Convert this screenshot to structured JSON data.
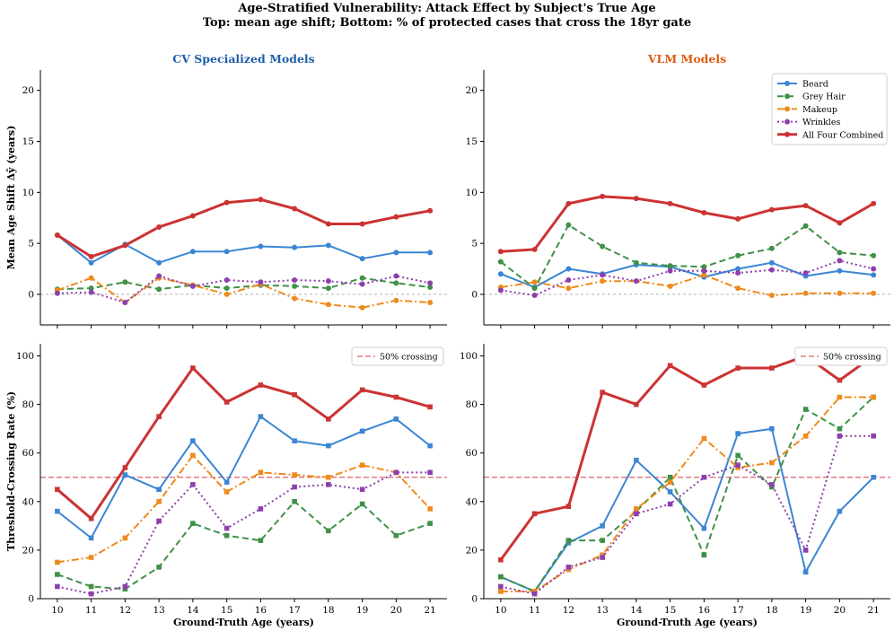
{
  "title_line1": "Age-Stratified Vulnerability: Attack Effect by Subject's True Age",
  "title_line2": "Top: mean age shift; Bottom: % of protected cases that cross the 18yr gate",
  "colors": {
    "Beard": "#3a86d4",
    "Grey Hair": "#3f9147",
    "Makeup": "#ef8a1d",
    "Wrinkles": "#8e3fad",
    "All Four Combined": "#cc3333",
    "cv_title": "#1f5fa8",
    "vlm_title": "#e05a12",
    "crossing": "#d9626a",
    "zero": "#b3b3b3"
  },
  "chart_data": [
    {
      "type": "line",
      "panel": "top-left",
      "title": "CV Specialized Models",
      "ylabel": "Mean Age Shift Δŷ (years)",
      "xlabel": "",
      "ylim": [
        -3,
        22
      ],
      "yticks": [
        0,
        5,
        10,
        15,
        20
      ],
      "x": [
        10,
        11,
        12,
        13,
        14,
        15,
        16,
        17,
        18,
        19,
        20,
        21
      ],
      "series": [
        {
          "name": "Beard",
          "values": [
            5.8,
            3.1,
            4.9,
            3.1,
            4.2,
            4.2,
            4.7,
            4.6,
            4.8,
            3.5,
            4.1,
            4.1
          ]
        },
        {
          "name": "Grey Hair",
          "values": [
            0.5,
            0.6,
            1.2,
            0.5,
            0.9,
            0.6,
            0.9,
            0.8,
            0.6,
            1.6,
            1.1,
            0.7
          ]
        },
        {
          "name": "Makeup",
          "values": [
            0.4,
            1.6,
            -0.8,
            1.6,
            0.9,
            0.0,
            1.0,
            -0.4,
            -1.0,
            -1.3,
            -0.6,
            -0.8
          ]
        },
        {
          "name": "Wrinkles",
          "values": [
            0.1,
            0.2,
            -0.8,
            1.8,
            0.8,
            1.4,
            1.2,
            1.4,
            1.3,
            1.0,
            1.8,
            1.1
          ]
        },
        {
          "name": "All Four Combined",
          "values": [
            5.8,
            3.7,
            4.8,
            6.6,
            7.7,
            9.0,
            9.3,
            8.4,
            6.9,
            6.9,
            7.6,
            8.2
          ]
        }
      ]
    },
    {
      "type": "line",
      "panel": "top-right",
      "title": "VLM Models",
      "ylabel": "",
      "xlabel": "",
      "ylim": [
        -3,
        22
      ],
      "yticks": [
        0,
        5,
        10,
        15,
        20
      ],
      "x": [
        10,
        11,
        12,
        13,
        14,
        15,
        16,
        17,
        18,
        19,
        20,
        21
      ],
      "legend_position": "top-right",
      "series": [
        {
          "name": "Beard",
          "values": [
            2.0,
            0.7,
            2.5,
            2.0,
            2.9,
            2.7,
            1.7,
            2.5,
            3.1,
            1.8,
            2.3,
            1.9
          ]
        },
        {
          "name": "Grey Hair",
          "values": [
            3.2,
            0.6,
            6.8,
            4.7,
            3.1,
            2.8,
            2.7,
            3.8,
            4.5,
            6.7,
            4.1,
            3.8
          ]
        },
        {
          "name": "Makeup",
          "values": [
            0.7,
            1.2,
            0.6,
            1.3,
            1.3,
            0.8,
            1.9,
            0.6,
            -0.1,
            0.1,
            0.1,
            0.1
          ]
        },
        {
          "name": "Wrinkles",
          "values": [
            0.4,
            -0.1,
            1.4,
            1.9,
            1.3,
            2.3,
            2.3,
            2.1,
            2.4,
            2.1,
            3.3,
            2.5
          ]
        },
        {
          "name": "All Four Combined",
          "values": [
            4.2,
            4.4,
            8.9,
            9.6,
            9.4,
            8.9,
            8.0,
            7.4,
            8.3,
            8.7,
            7.0,
            8.9
          ]
        }
      ]
    },
    {
      "type": "line",
      "panel": "bottom-left",
      "title": "",
      "ylabel": "Threshold-Crossing Rate (%)",
      "xlabel": "Ground-Truth Age (years)",
      "ylim": [
        0,
        105
      ],
      "yticks": [
        0,
        20,
        40,
        60,
        80,
        100
      ],
      "x": [
        10,
        11,
        12,
        13,
        14,
        15,
        16,
        17,
        18,
        19,
        20,
        21
      ],
      "reference_line": {
        "label": "50% crossing",
        "value": 50
      },
      "series": [
        {
          "name": "Beard",
          "values": [
            36,
            25,
            51,
            45,
            65,
            48,
            75,
            65,
            63,
            69,
            74,
            63
          ]
        },
        {
          "name": "Grey Hair",
          "values": [
            10,
            5,
            4,
            13,
            31,
            26,
            24,
            40,
            28,
            39,
            26,
            31
          ]
        },
        {
          "name": "Makeup",
          "values": [
            15,
            17,
            25,
            40,
            59,
            44,
            52,
            51,
            50,
            55,
            52,
            37
          ]
        },
        {
          "name": "Wrinkles",
          "values": [
            5,
            2,
            5,
            32,
            47,
            29,
            37,
            46,
            47,
            45,
            52,
            52
          ]
        },
        {
          "name": "All Four Combined",
          "values": [
            45,
            33,
            54,
            75,
            95,
            81,
            88,
            84,
            74,
            86,
            83,
            79
          ]
        }
      ]
    },
    {
      "type": "line",
      "panel": "bottom-right",
      "title": "",
      "ylabel": "",
      "xlabel": "Ground-Truth Age (years)",
      "ylim": [
        0,
        105
      ],
      "yticks": [
        0,
        20,
        40,
        60,
        80,
        100
      ],
      "x": [
        10,
        11,
        12,
        13,
        14,
        15,
        16,
        17,
        18,
        19,
        20,
        21
      ],
      "reference_line": {
        "label": "50% crossing",
        "value": 50
      },
      "series": [
        {
          "name": "Beard",
          "values": [
            9,
            3,
            23,
            30,
            57,
            44,
            29,
            68,
            70,
            11,
            36,
            50
          ]
        },
        {
          "name": "Grey Hair",
          "values": [
            9,
            3,
            24,
            24,
            36,
            50,
            18,
            59,
            46,
            78,
            70,
            83
          ]
        },
        {
          "name": "Makeup",
          "values": [
            3,
            3,
            12,
            18,
            37,
            48,
            66,
            54,
            56,
            67,
            83,
            83
          ]
        },
        {
          "name": "Wrinkles",
          "values": [
            5,
            2,
            13,
            17,
            35,
            39,
            50,
            55,
            47,
            20,
            67,
            67
          ]
        },
        {
          "name": "All Four Combined",
          "values": [
            16,
            35,
            38,
            85,
            80,
            96,
            88,
            95,
            95,
            100,
            90,
            100
          ]
        }
      ]
    }
  ]
}
